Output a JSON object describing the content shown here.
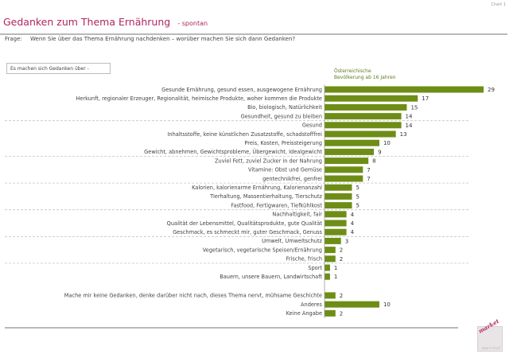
{
  "chart_label": "Chart 1",
  "title": "Gedanken zum Thema Ernährung",
  "subtitle": "- spontan",
  "question_label": "Frage:",
  "question_text": "Wenn Sie über das Thema Ernährung nachdenken – worüber machen Sie sich dann Gedanken?",
  "intro_box": "Es machen sich Gedanken über -",
  "population_line1": "Österreichische",
  "population_line2": "Bevölkerung ab 16 Jahren",
  "logo": {
    "text": "market",
    "sub": "INSTITUT"
  },
  "colors": {
    "bar": "#6e8d16",
    "title": "#b0245e",
    "rule": "#b9b9b9"
  },
  "chart_data": {
    "type": "bar",
    "orientation": "horizontal",
    "title": "Gedanken zum Thema Ernährung",
    "xlim": [
      0,
      30
    ],
    "categories": [
      "Gesunde Ernährung, gesund essen, ausgewogene Ernährung",
      "Herkunft, regionaler Erzeuger, Regionalität, heimische Produkte, woher kommen die Produkte",
      "Bio, biologisch, Natürlichkeit",
      "Gesundheit, gesund zu bleiben",
      "Gesund",
      "Inhaltsstoffe, keine künstlichen Zusatzstoffe, schadstofffrei",
      "Preis, Kosten, Preissteigerung",
      "Gewicht, abnehmen, Gewichtsprobleme, Übergewicht, Idealgewicht",
      "Zuviel Fett, zuviel Zucker in der Nahrung",
      "Vitamine: Obst und Gemüse",
      "gentechnikfrei, genfrei",
      "Kalorien, kalorienarme Ernährung, Kalorienanzahl",
      "Tierhaltung, Massentierhaltung, Tierschutz",
      "Fastfood, Fertigwaren, Tiefkühlkost",
      "Nachhaltigkeit, fair",
      "Qualität der Lebensmittel, Qualitätsprodukte, gute Qualität",
      "Geschmack, es schmeckt mir, guter Geschmack, Genuss",
      "Umwelt, Umweltschutz",
      "Vegetarisch, vegetarische Speisen/Ernährung",
      "Frische, frisch",
      "Sport",
      "Bauern, unsere Bauern, Landwirtschaft",
      "Mache mir keine Gedanken, denke darüber nicht nach, dieses Thema nervt, mühsame Geschichte",
      "Anderes",
      "Keine Angabe"
    ],
    "values": [
      29,
      17,
      15,
      14,
      14,
      13,
      10,
      9,
      8,
      7,
      7,
      5,
      5,
      5,
      4,
      4,
      4,
      3,
      2,
      2,
      1,
      1,
      2,
      10,
      2
    ],
    "group_separators_after": [
      3,
      7,
      10,
      13,
      16,
      19
    ]
  }
}
